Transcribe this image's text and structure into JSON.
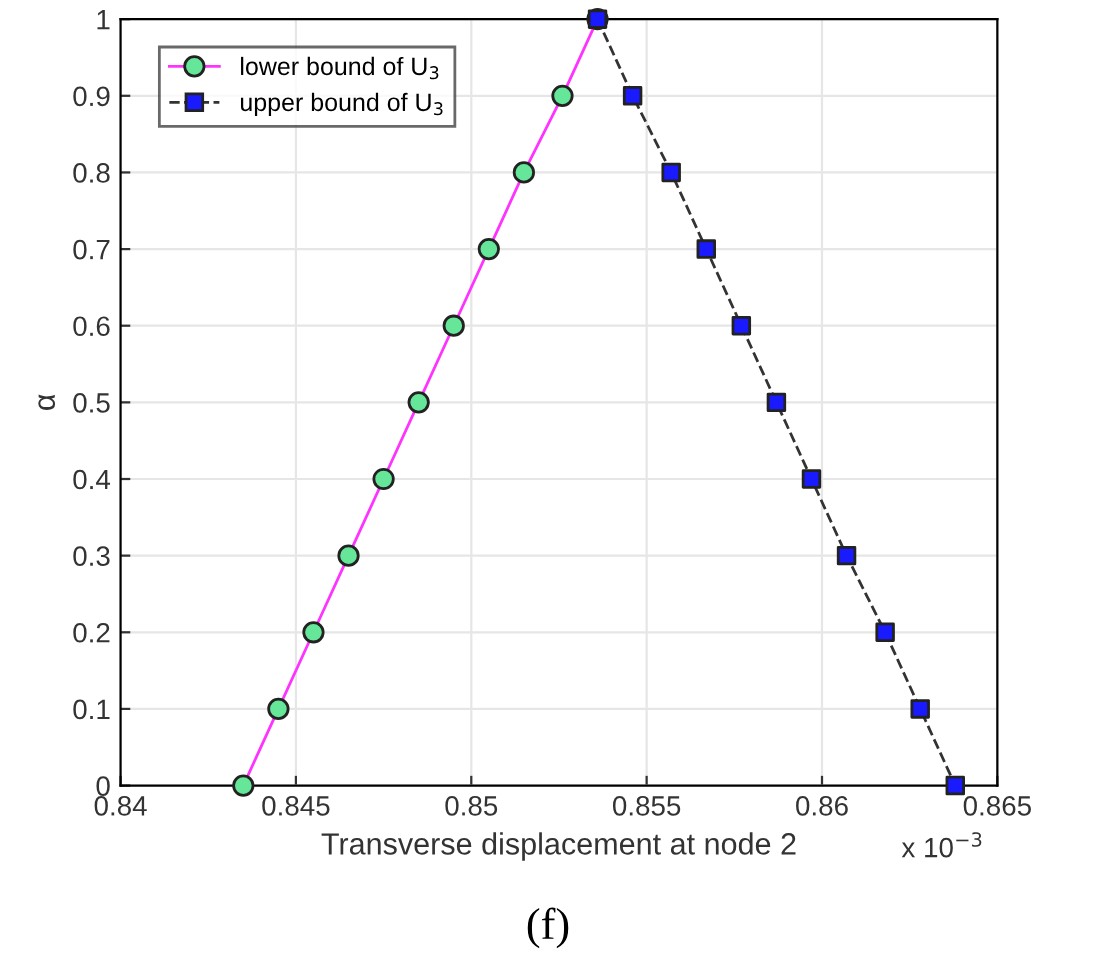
{
  "chart_data": {
    "type": "line",
    "xlabel": "Transverse displacement at node 2",
    "ylabel": "α",
    "annotations": [
      "x 10$^{−3}$",
      "(f)"
    ],
    "xlim": [
      0.84,
      0.865
    ],
    "xticks": [
      0.84,
      0.845,
      0.85,
      0.855,
      0.86,
      0.865
    ],
    "ylim": [
      0,
      1
    ],
    "yticks": [
      0,
      0.1,
      0.2,
      0.3,
      0.4,
      0.5,
      0.6,
      0.7,
      0.8,
      0.9,
      1
    ],
    "grid": true,
    "legend": "top left",
    "series": [
      {
        "name": "lower bound of U$_{3}$",
        "color": "#ff33ff",
        "marker": "circle",
        "line_style": "solid",
        "colors": [
          "#66e699",
          "#66e699",
          "#66e699",
          "#66e699",
          "#66e699",
          "#66e699",
          "#66e699",
          "#66e699",
          "#66e699",
          "#66e699",
          "#66e699"
        ],
        "x": [
          0.8435,
          0.8445,
          0.8455,
          0.8465,
          0.8475,
          0.8485,
          0.8495,
          0.8505,
          0.8515,
          0.8526,
          0.8536
        ],
        "values": [
          0,
          0.1,
          0.2,
          0.3,
          0.4,
          0.5,
          0.6,
          0.7,
          0.8,
          0.9,
          1
        ]
      },
      {
        "name": "upper bound of U$_{3}$",
        "color": "#333333",
        "marker": "square",
        "line_style": "dashed",
        "colors": [
          "#1a1aff",
          "#1a1aff",
          "#1a1aff",
          "#1a1aff",
          "#1a1aff",
          "#1a1aff",
          "#1a1aff",
          "#1a1aff",
          "#1a1aff",
          "#1a1aff",
          "#1a1aff"
        ],
        "x": [
          0.8536,
          0.8546,
          0.8557,
          0.8567,
          0.8577,
          0.8587,
          0.8597,
          0.8607,
          0.8618,
          0.8628,
          0.8638
        ],
        "values": [
          1,
          0.9,
          0.8,
          0.7,
          0.6,
          0.5,
          0.4,
          0.3,
          0.2,
          0.1,
          0
        ]
      }
    ]
  }
}
